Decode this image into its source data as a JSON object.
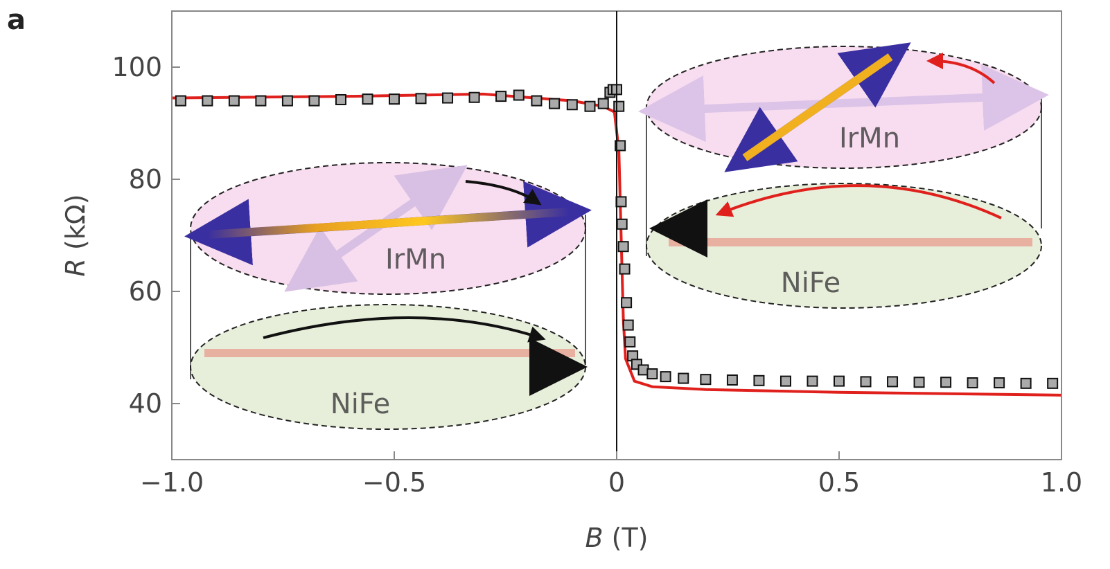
{
  "chart_data": {
    "type": "scatter",
    "panel_label": "a",
    "x_label_var": "B",
    "x_label_unit": "(T)",
    "y_label_var": "R",
    "y_label_unit": "(kΩ)",
    "xlim": [
      -1,
      1
    ],
    "ylim": [
      30,
      110
    ],
    "xticks": [
      {
        "value": -1,
        "label": "−1.0"
      },
      {
        "value": -0.5,
        "label": "−0.5"
      },
      0,
      0.5,
      {
        "value": 1,
        "label": "1.0"
      }
    ],
    "yticks": [
      40,
      60,
      80,
      100
    ],
    "annotations": [
      "IrMn",
      "NiFe",
      "IrMn",
      "NiFe"
    ],
    "series": [
      {
        "color": "#e0201c",
        "style": "line",
        "x": [
          -1.0,
          -0.6,
          -0.3,
          -0.1,
          -0.03,
          -0.005,
          0.005,
          0.01,
          0.015,
          0.02,
          0.04,
          0.08,
          0.2,
          0.5,
          1.0
        ],
        "values": [
          94.5,
          94.8,
          95.2,
          94,
          93,
          92,
          85,
          70,
          55,
          48,
          44,
          43,
          42.5,
          42,
          41.5
        ]
      },
      {
        "color": "#111111",
        "style": "squares",
        "x": [
          -0.98,
          -0.92,
          -0.86,
          -0.8,
          -0.74,
          -0.68,
          -0.62,
          -0.56,
          -0.5,
          -0.44,
          -0.38,
          -0.32,
          -0.26,
          -0.22,
          -0.18,
          -0.14,
          -0.1,
          -0.06,
          -0.03,
          -0.015,
          -0.008,
          0.0,
          0.005,
          0.008,
          0.01,
          0.012,
          0.015,
          0.018,
          0.022,
          0.026,
          0.03,
          0.036,
          0.045,
          0.06,
          0.08,
          0.11,
          0.15,
          0.2,
          0.26,
          0.32,
          0.38,
          0.44,
          0.5,
          0.56,
          0.62,
          0.68,
          0.74,
          0.8,
          0.86,
          0.92,
          0.98
        ],
        "values": [
          94,
          94,
          94,
          94,
          94,
          94,
          94.2,
          94.3,
          94.3,
          94.4,
          94.5,
          94.6,
          94.8,
          95,
          94,
          93.5,
          93.3,
          93,
          93.5,
          95.5,
          96,
          96,
          93,
          86,
          76,
          72,
          68,
          64,
          58,
          54,
          51,
          48.5,
          47,
          46,
          45.3,
          44.8,
          44.5,
          44.3,
          44.2,
          44.1,
          44,
          44,
          44,
          43.9,
          43.9,
          43.8,
          43.8,
          43.7,
          43.7,
          43.6,
          43.6
        ]
      }
    ]
  }
}
